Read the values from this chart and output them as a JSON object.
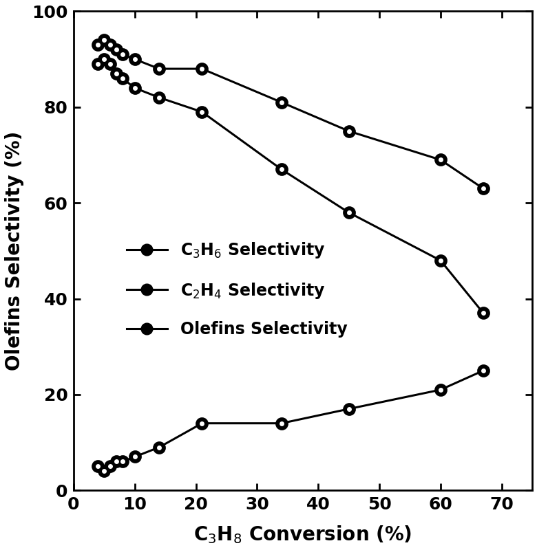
{
  "x_conversion": [
    4,
    5,
    6,
    7,
    8,
    10,
    14,
    21,
    34,
    45,
    60,
    67
  ],
  "c3h6_selectivity": [
    93,
    94,
    93,
    92,
    91,
    90,
    88,
    88,
    81,
    75,
    69,
    63
  ],
  "c2h4_selectivity": [
    89,
    90,
    89,
    87,
    86,
    84,
    82,
    79,
    67,
    58,
    48,
    37
  ],
  "olefins_selectivity": [
    5,
    4,
    5,
    6,
    6,
    7,
    9,
    14,
    14,
    17,
    21,
    25
  ],
  "xlabel": "C$_3$H$_8$ Conversion (%)",
  "ylabel": "Olefins Selectivity (%)",
  "legend_c3h6": "C$_3$H$_6$ Selectivity",
  "legend_c2h4": "C$_2$H$_4$ Selectivity",
  "legend_olefins": "Olefins Selectivity",
  "xlim": [
    0,
    75
  ],
  "ylim": [
    0,
    100
  ],
  "xticks": [
    0,
    10,
    20,
    30,
    40,
    50,
    60,
    70
  ],
  "yticks": [
    0,
    20,
    40,
    60,
    80,
    100
  ],
  "line_color": "#000000",
  "background_color": "#ffffff",
  "label_fontsize": 20,
  "tick_fontsize": 18,
  "legend_fontsize": 17,
  "line_width": 2.2,
  "marker_size_outer": 12,
  "marker_size_inner": 5
}
